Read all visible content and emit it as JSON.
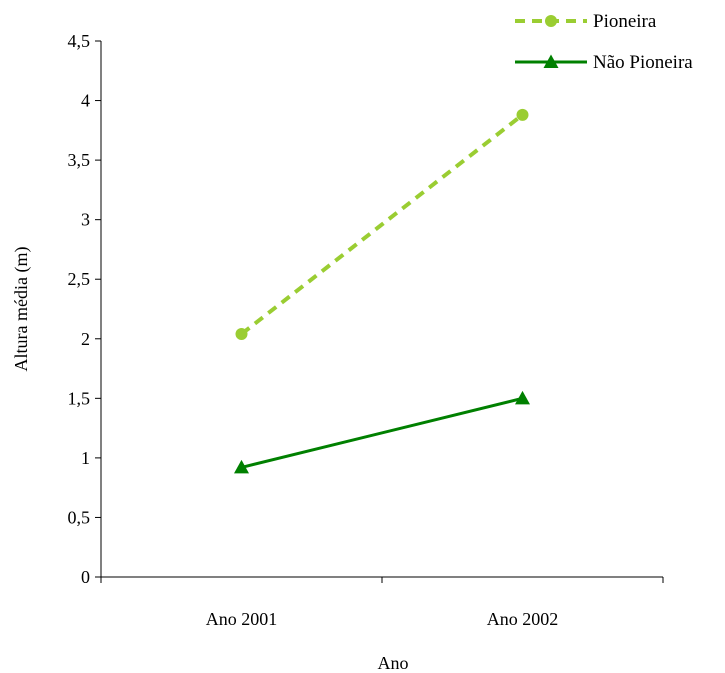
{
  "chart_data": {
    "type": "line",
    "title": "",
    "xlabel": "Ano",
    "ylabel": "Altura média (m)",
    "categories": [
      "Ano 2001",
      "Ano 2002"
    ],
    "ylim": [
      0,
      4.5
    ],
    "yticks": [
      0,
      0.5,
      1,
      1.5,
      2,
      2.5,
      3,
      3.5,
      4,
      4.5
    ],
    "ytick_labels": [
      "0",
      "0,5",
      "1",
      "1,5",
      "2",
      "2,5",
      "3",
      "3,5",
      "4",
      "4,5"
    ],
    "grid": false,
    "legend_position": "top-right",
    "series": [
      {
        "name": "Pioneira",
        "values": [
          2.04,
          3.88
        ],
        "color": "#9acd32",
        "line_style": "dashed",
        "marker": "circle"
      },
      {
        "name": "Não Pioneira",
        "values": [
          0.92,
          1.5
        ],
        "color": "#008000",
        "line_style": "solid",
        "marker": "triangle"
      }
    ]
  }
}
